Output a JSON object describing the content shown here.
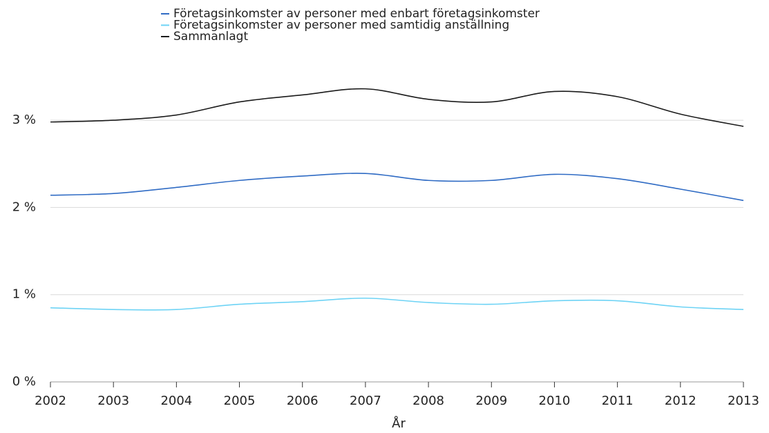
{
  "chart_data": {
    "type": "line",
    "x": [
      2002,
      2003,
      2004,
      2005,
      2006,
      2007,
      2008,
      2009,
      2010,
      2011,
      2012,
      2013
    ],
    "x_label": "År",
    "series": [
      {
        "name": "Företagsinkomster av personer med enbart företagsinkomster",
        "color": "#2f6bc4",
        "values": [
          2.14,
          2.16,
          2.23,
          2.31,
          2.36,
          2.39,
          2.31,
          2.31,
          2.38,
          2.33,
          2.21,
          2.08
        ]
      },
      {
        "name": "Företagsinkomster av personer med samtidig anställning",
        "color": "#6dd3f5",
        "values": [
          0.85,
          0.83,
          0.83,
          0.89,
          0.92,
          0.96,
          0.91,
          0.89,
          0.93,
          0.93,
          0.86,
          0.83
        ]
      },
      {
        "name": "Sammanlagt",
        "color": "#1a1a1a",
        "values": [
          2.98,
          3.0,
          3.06,
          3.21,
          3.29,
          3.36,
          3.24,
          3.21,
          3.33,
          3.27,
          3.07,
          2.93
        ]
      }
    ],
    "xlim": [
      2002,
      2013
    ],
    "xticks": [
      2002,
      2003,
      2004,
      2005,
      2006,
      2007,
      2008,
      2009,
      2010,
      2011,
      2012,
      2013
    ],
    "ylim": [
      0,
      3.5
    ],
    "yticks": [
      {
        "value": 0,
        "label": "0 %"
      },
      {
        "value": 1,
        "label": "1 %"
      },
      {
        "value": 2,
        "label": "2 %"
      },
      {
        "value": 3,
        "label": "3 %"
      }
    ],
    "grid": true,
    "legend": "top"
  }
}
